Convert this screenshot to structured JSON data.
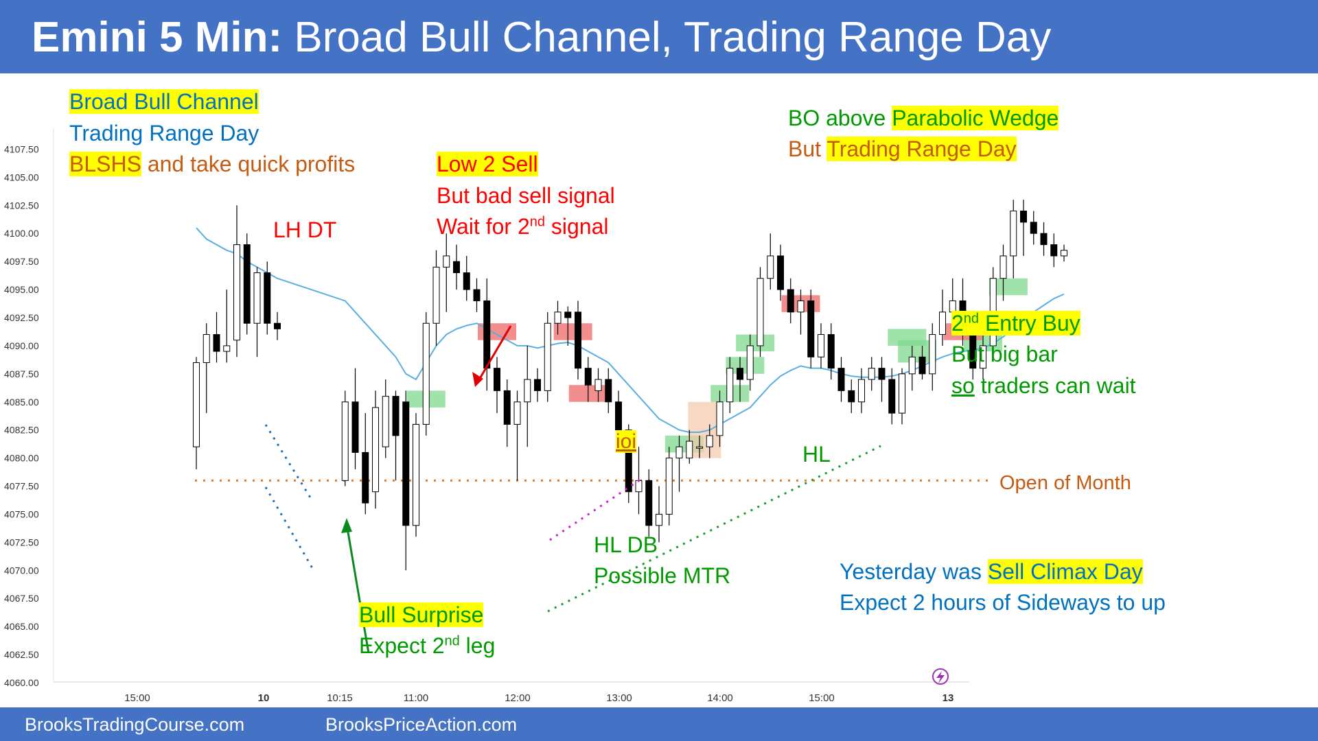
{
  "header": {
    "title_bold": "Emini 5 Min:",
    "title_rest": "Broad Bull Channel, Trading Range Day"
  },
  "footer": {
    "left_link": "BrooksTradingCourse.com",
    "right_link": "BrooksPriceAction.com"
  },
  "colors": {
    "banner": "#4472c4",
    "bull_bar": "#ffffff",
    "bear_bar": "#000000",
    "ema": "#5aaee0",
    "buy_box": "#7fd98f",
    "sell_box": "#f07a7a",
    "highlight": "#ffff00"
  },
  "annotations": {
    "broad_bull_channel": "Broad Bull Channel",
    "trading_range_day": "Trading Range Day",
    "blshs_hl": "BLSHS",
    "blshs_rest": " and take quick profits",
    "lh_dt": "LH DT",
    "low2_sell": "Low 2 Sell",
    "bad_sell_signal": "But bad sell signal",
    "wait_2nd_a": "Wait for 2",
    "wait_2nd_sup": "nd",
    "wait_2nd_b": " signal",
    "bo_above": "BO above ",
    "parabolic_wedge": "Parabolic Wedge",
    "but_word": "But ",
    "trading_range_day2": "Trading Range Day",
    "entry2_sup": "nd",
    "entry2_a": "2",
    "entry2_b": " Entry Buy",
    "but_big_bar": "But big bar",
    "so_word": "so",
    "traders_can_wait": " traders can wait",
    "ioi": "ioi",
    "hl": "HL",
    "open_of_month": "Open of Month",
    "hl_db": "HL DB",
    "possible_mtr": "Possible MTR",
    "bull_surprise": "Bull Surprise",
    "expect_2nd_a": "Expect 2",
    "expect_2nd_sup": "nd",
    "expect_2nd_b": " leg",
    "yesterday_was": "Yesterday was ",
    "sell_climax_day": "Sell Climax Day",
    "expect_sideways": "Expect 2 hours of Sideways to up"
  },
  "chart_data": {
    "type": "candlestick",
    "title": "Emini 5 Min",
    "y_ticks": [
      "4107.50",
      "4105.00",
      "4102.50",
      "4100.00",
      "4097.50",
      "4095.00",
      "4092.50",
      "4090.00",
      "4087.50",
      "4085.00",
      "4082.50",
      "4080.00",
      "4077.50",
      "4075.00",
      "4072.50",
      "4070.00",
      "4067.50",
      "4065.00",
      "4062.50",
      "4060.00"
    ],
    "ylim": [
      4060,
      4108.75
    ],
    "x_ticks": [
      "15:00",
      "10",
      "10:15",
      "11:00",
      "12:00",
      "13:00",
      "14:00",
      "15:00",
      "13"
    ],
    "open_of_month": 4078,
    "bars": [
      {
        "o": 4081,
        "h": 4089,
        "l": 4079,
        "c": 4088.5
      },
      {
        "o": 4088.5,
        "h": 4092,
        "l": 4084,
        "c": 4091
      },
      {
        "o": 4091,
        "h": 4093,
        "l": 4088.5,
        "c": 4089.5
      },
      {
        "o": 4089.5,
        "h": 4095,
        "l": 4088.5,
        "c": 4090
      },
      {
        "o": 4090.5,
        "h": 4102.5,
        "l": 4089,
        "c": 4099
      },
      {
        "o": 4099,
        "h": 4100,
        "l": 4091,
        "c": 4092
      },
      {
        "o": 4092,
        "h": 4097,
        "l": 4089,
        "c": 4096.5
      },
      {
        "o": 4096.5,
        "h": 4097.5,
        "l": 4091,
        "c": 4092
      },
      {
        "o": 4092,
        "h": 4093,
        "l": 4090.5,
        "c": 4091.5
      },
      {
        "o": 4078,
        "h": 4086,
        "l": 4077.5,
        "c": 4085
      },
      {
        "o": 4085,
        "h": 4088,
        "l": 4079,
        "c": 4080.5
      },
      {
        "o": 4080.5,
        "h": 4084,
        "l": 4075,
        "c": 4076
      },
      {
        "o": 4077,
        "h": 4086,
        "l": 4075.5,
        "c": 4084.5
      },
      {
        "o": 4081,
        "h": 4087,
        "l": 4080,
        "c": 4085.5
      },
      {
        "o": 4085.5,
        "h": 4086,
        "l": 4078,
        "c": 4082
      },
      {
        "o": 4085,
        "h": 4086,
        "l": 4070,
        "c": 4074
      },
      {
        "o": 4074,
        "h": 4084,
        "l": 4073,
        "c": 4083
      },
      {
        "o": 4083,
        "h": 4093,
        "l": 4082,
        "c": 4092
      },
      {
        "o": 4092,
        "h": 4098.5,
        "l": 4090,
        "c": 4097
      },
      {
        "o": 4097,
        "h": 4100,
        "l": 4093,
        "c": 4098
      },
      {
        "o": 4097.5,
        "h": 4099,
        "l": 4095,
        "c": 4096.5
      },
      {
        "o": 4096.5,
        "h": 4098,
        "l": 4094,
        "c": 4095
      },
      {
        "o": 4095,
        "h": 4096,
        "l": 4093,
        "c": 4094
      },
      {
        "o": 4094,
        "h": 4096,
        "l": 4086,
        "c": 4088
      },
      {
        "o": 4088,
        "h": 4089,
        "l": 4084,
        "c": 4086
      },
      {
        "o": 4086,
        "h": 4087,
        "l": 4081,
        "c": 4083
      },
      {
        "o": 4083,
        "h": 4086,
        "l": 4078,
        "c": 4085
      },
      {
        "o": 4085,
        "h": 4090,
        "l": 4081,
        "c": 4087
      },
      {
        "o": 4087,
        "h": 4088,
        "l": 4085,
        "c": 4086
      },
      {
        "o": 4086,
        "h": 4093,
        "l": 4085,
        "c": 4092
      },
      {
        "o": 4092,
        "h": 4094,
        "l": 4091,
        "c": 4093
      },
      {
        "o": 4093,
        "h": 4093.5,
        "l": 4090,
        "c": 4092.5
      },
      {
        "o": 4093,
        "h": 4094,
        "l": 4087,
        "c": 4088
      },
      {
        "o": 4088,
        "h": 4089,
        "l": 4085,
        "c": 4086.5
      },
      {
        "o": 4086,
        "h": 4088,
        "l": 4085,
        "c": 4087
      },
      {
        "o": 4087,
        "h": 4088,
        "l": 4084,
        "c": 4085
      },
      {
        "o": 4085,
        "h": 4086,
        "l": 4081,
        "c": 4082.5
      },
      {
        "o": 4082.5,
        "h": 4083,
        "l": 4076,
        "c": 4077
      },
      {
        "o": 4077,
        "h": 4081,
        "l": 4075,
        "c": 4078
      },
      {
        "o": 4078,
        "h": 4079,
        "l": 4073,
        "c": 4074
      },
      {
        "o": 4074,
        "h": 4077.5,
        "l": 4072.5,
        "c": 4075
      },
      {
        "o": 4075,
        "h": 4081,
        "l": 4074,
        "c": 4080
      },
      {
        "o": 4080,
        "h": 4082,
        "l": 4077,
        "c": 4081
      },
      {
        "o": 4080,
        "h": 4082.5,
        "l": 4079.5,
        "c": 4081.5
      },
      {
        "o": 4081,
        "h": 4082,
        "l": 4080,
        "c": 4081
      },
      {
        "o": 4081,
        "h": 4083,
        "l": 4080,
        "c": 4082
      },
      {
        "o": 4082,
        "h": 4086,
        "l": 4081,
        "c": 4085
      },
      {
        "o": 4085,
        "h": 4089,
        "l": 4084,
        "c": 4088
      },
      {
        "o": 4088,
        "h": 4089,
        "l": 4085,
        "c": 4087
      },
      {
        "o": 4087,
        "h": 4091,
        "l": 4086,
        "c": 4090
      },
      {
        "o": 4090,
        "h": 4097,
        "l": 4089,
        "c": 4096
      },
      {
        "o": 4096,
        "h": 4100,
        "l": 4095,
        "c": 4098
      },
      {
        "o": 4098,
        "h": 4099,
        "l": 4094,
        "c": 4095
      },
      {
        "o": 4095,
        "h": 4096,
        "l": 4092,
        "c": 4093
      },
      {
        "o": 4093,
        "h": 4095,
        "l": 4091,
        "c": 4094
      },
      {
        "o": 4094,
        "h": 4095,
        "l": 4088,
        "c": 4089
      },
      {
        "o": 4089,
        "h": 4092,
        "l": 4088,
        "c": 4091
      },
      {
        "o": 4091,
        "h": 4092,
        "l": 4087,
        "c": 4088
      },
      {
        "o": 4088,
        "h": 4089,
        "l": 4085,
        "c": 4086
      },
      {
        "o": 4086,
        "h": 4087,
        "l": 4084,
        "c": 4085
      },
      {
        "o": 4085,
        "h": 4088,
        "l": 4084,
        "c": 4087
      },
      {
        "o": 4087,
        "h": 4089,
        "l": 4086,
        "c": 4088
      },
      {
        "o": 4088,
        "h": 4089,
        "l": 4085,
        "c": 4087
      },
      {
        "o": 4087,
        "h": 4088,
        "l": 4083,
        "c": 4084
      },
      {
        "o": 4084,
        "h": 4088,
        "l": 4083,
        "c": 4087.5
      },
      {
        "o": 4087.5,
        "h": 4090,
        "l": 4086,
        "c": 4089
      },
      {
        "o": 4089,
        "h": 4090,
        "l": 4087,
        "c": 4087.5
      },
      {
        "o": 4087.5,
        "h": 4092,
        "l": 4086,
        "c": 4091
      },
      {
        "o": 4091,
        "h": 4095,
        "l": 4090,
        "c": 4093
      },
      {
        "o": 4093,
        "h": 4096,
        "l": 4091,
        "c": 4094
      },
      {
        "o": 4094,
        "h": 4096,
        "l": 4090,
        "c": 4091
      },
      {
        "o": 4091,
        "h": 4092,
        "l": 4087,
        "c": 4088
      },
      {
        "o": 4088,
        "h": 4091,
        "l": 4087,
        "c": 4090
      },
      {
        "o": 4090,
        "h": 4097,
        "l": 4089,
        "c": 4096
      },
      {
        "o": 4096,
        "h": 4099,
        "l": 4094,
        "c": 4098
      },
      {
        "o": 4098,
        "h": 4103,
        "l": 4096,
        "c": 4102
      },
      {
        "o": 4102,
        "h": 4103,
        "l": 4098,
        "c": 4101
      },
      {
        "o": 4101,
        "h": 4102,
        "l": 4099,
        "c": 4100
      },
      {
        "o": 4100,
        "h": 4101,
        "l": 4098,
        "c": 4099
      },
      {
        "o": 4099,
        "h": 4100,
        "l": 4097,
        "c": 4098
      },
      {
        "o": 4098,
        "h": 4099,
        "l": 4097.5,
        "c": 4098.5
      }
    ],
    "day_break_after_bar": 8,
    "ema_20": [
      4100.5,
      4099.5,
      4099,
      4098.5,
      4098.2,
      4097.5,
      4097,
      4096.5,
      4096,
      4094,
      4093,
      4092,
      4091,
      4090,
      4089,
      4087.5,
      4087,
      4088.5,
      4090,
      4091,
      4091.5,
      4091.8,
      4092,
      4091.5,
      4091,
      4090.5,
      4090,
      4090,
      4089.8,
      4090,
      4090.2,
      4090.3,
      4090,
      4089.5,
      4089,
      4088.5,
      4087.5,
      4086.5,
      4085.5,
      4084.5,
      4083.5,
      4083,
      4082.5,
      4082.3,
      4082.3,
      4082.5,
      4083,
      4083.5,
      4084,
      4084.5,
      4085.5,
      4086.5,
      4087.3,
      4087.8,
      4088.2,
      4088,
      4088,
      4087.8,
      4087.5,
      4087.3,
      4087.2,
      4087.2,
      4087.2,
      4087.3,
      4087.5,
      4087.8,
      4088.2,
      4088.6,
      4089,
      4089.3,
      4089.5,
      4089.6,
      4089.8,
      4090.2,
      4090.8,
      4091.5,
      4092.3,
      4093,
      4093.6,
      4094.2,
      4094.6
    ],
    "buy_boxes": [
      {
        "bar": 17,
        "top": 4086,
        "bottom": 4084.5
      },
      {
        "bar": 42.5,
        "top": 4082,
        "bottom": 4080.5
      },
      {
        "bar": 47,
        "top": 4086.5,
        "bottom": 4085
      },
      {
        "bar": 48.5,
        "top": 4089,
        "bottom": 4087.5
      },
      {
        "bar": 49.5,
        "top": 4091,
        "bottom": 4089.5
      },
      {
        "bar": 64.5,
        "top": 4091.5,
        "bottom": 4090
      },
      {
        "bar": 65.5,
        "top": 4090.5,
        "bottom": 4088.5
      },
      {
        "bar": 72,
        "top": 4091,
        "bottom": 4089.5
      },
      {
        "bar": 74.5,
        "top": 4096,
        "bottom": 4094.5
      }
    ],
    "sell_boxes": [
      {
        "bar": 24,
        "top": 4092,
        "bottom": 4090.5
      },
      {
        "bar": 31.5,
        "top": 4092,
        "bottom": 4090.5
      },
      {
        "bar": 33,
        "top": 4086.5,
        "bottom": 4085
      },
      {
        "bar": 54,
        "top": 4094.5,
        "bottom": 4093
      },
      {
        "bar": 70,
        "top": 4092,
        "bottom": 4090.5
      }
    ],
    "ioi_box": {
      "bar": 44.5,
      "top": 4085,
      "bottom": 4080
    }
  }
}
